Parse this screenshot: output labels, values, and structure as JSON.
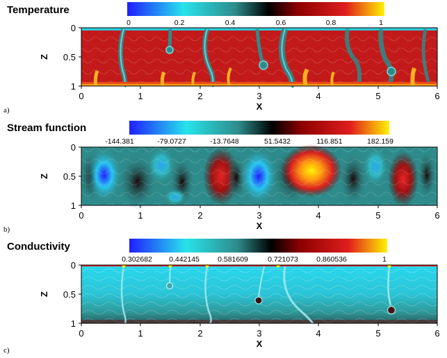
{
  "figure": {
    "colors": {
      "blue": "#1f1fff",
      "cyan": "#27e3ea",
      "teal": "#2e8b8b",
      "black": "#000000",
      "darkred": "#8b0000",
      "red": "#e01e1e",
      "yellow": "#fff200",
      "grid_bg": "#c51616"
    },
    "panels": [
      {
        "letter": "a)",
        "title": "Temperature",
        "colorbar_labels": [
          "0",
          "0.2",
          "0.4",
          "0.6",
          "0.8",
          "1"
        ],
        "xlabel": "X",
        "ylabel": "Z",
        "x_ticks": [
          "0",
          "1",
          "2",
          "3",
          "4",
          "5",
          "6"
        ],
        "y_ticks": [
          "0",
          "0.5",
          "1"
        ]
      },
      {
        "letter": "b)",
        "title": "Stream function",
        "colorbar_labels": [
          "-144.381",
          "-79.0727",
          "-13.7648",
          "51.5432",
          "116.851",
          "182.159"
        ],
        "xlabel": "X",
        "ylabel": "Z",
        "x_ticks": [
          "0",
          "1",
          "2",
          "3",
          "4",
          "5",
          "6"
        ],
        "y_ticks": [
          "0",
          "0.5",
          "1"
        ]
      },
      {
        "letter": "c)",
        "title": "Conductivity",
        "colorbar_labels": [
          "0.302682",
          "0.442145",
          "0.581609",
          "0.721073",
          "0.860536",
          "1"
        ],
        "xlabel": "X",
        "ylabel": "Z",
        "x_ticks": [
          "0",
          "1",
          "2",
          "3",
          "4",
          "5",
          "6"
        ],
        "y_ticks": [
          "0",
          "0.5",
          "1"
        ]
      }
    ]
  }
}
